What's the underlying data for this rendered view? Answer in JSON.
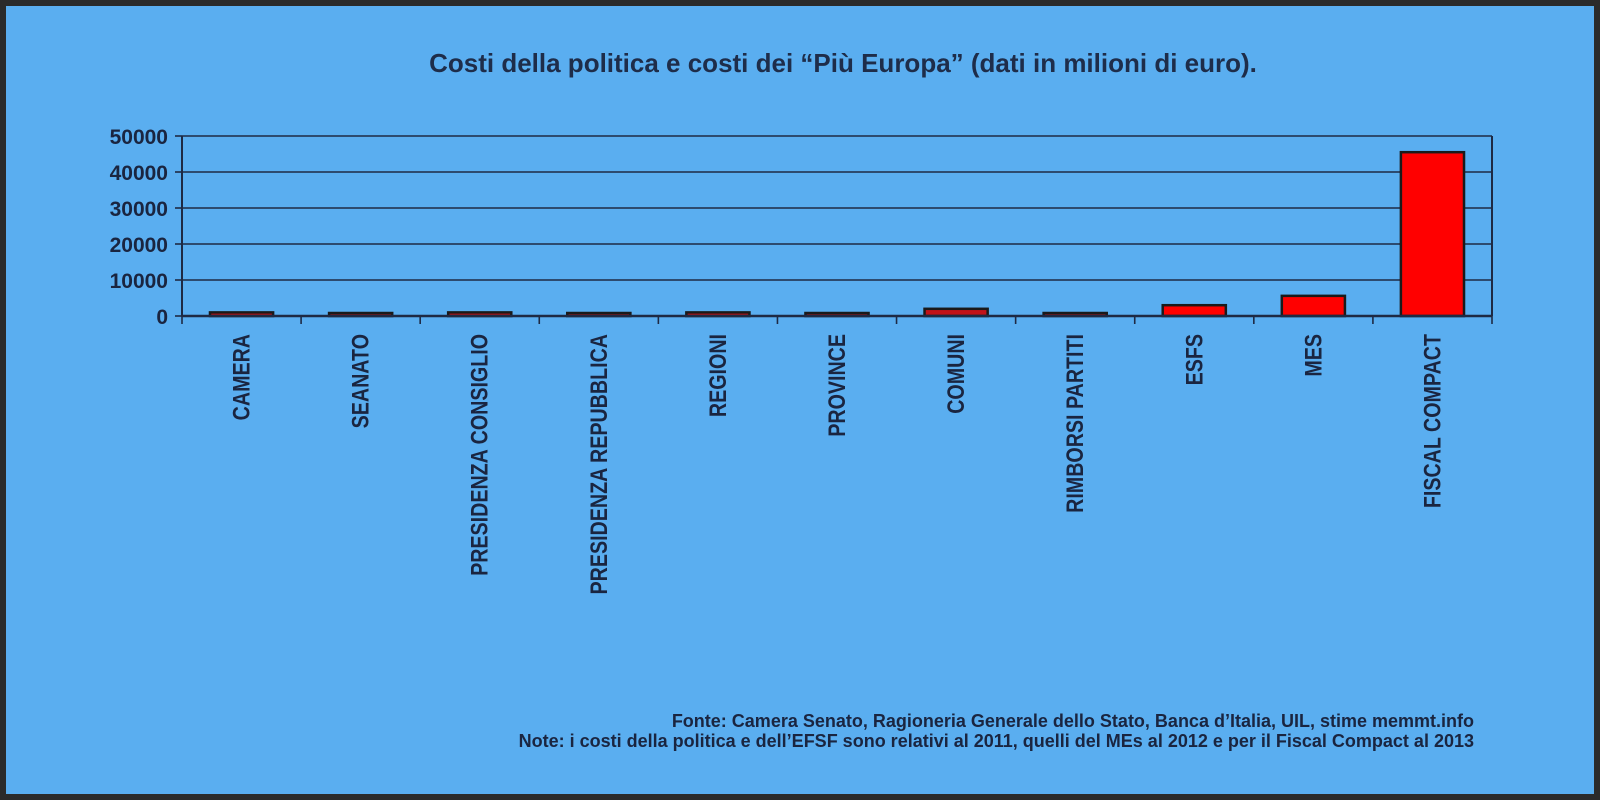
{
  "chart_data": {
    "type": "bar",
    "title": "Costi della politica e costi dei “Più Europa” (dati in milioni di euro).",
    "categories": [
      "CAMERA",
      "SEANATO",
      "PRESIDENZA CONSIGLIO",
      "PRESIDENZA REPUBBLICA",
      "REGIONI",
      "PROVINCE",
      "COMUNI",
      "RIMBORSI PARTITI",
      "ESFS",
      "MES",
      "FISCAL COMPACT"
    ],
    "values": [
      1000,
      500,
      1000,
      300,
      1000,
      500,
      2000,
      100,
      3000,
      5600,
      45500
    ],
    "bar_colors": [
      "#c1121a",
      "#c1121a",
      "#c1121a",
      "#c1121a",
      "#c1121a",
      "#c1121a",
      "#c1121a",
      "#c1121a",
      "#ff0000",
      "#ff0000",
      "#ff0000"
    ],
    "ylim": [
      0,
      50000
    ],
    "yticks": [
      0,
      10000,
      20000,
      30000,
      40000,
      50000
    ],
    "xlabel": "",
    "ylabel": "",
    "grid": true
  },
  "footer": {
    "source": "Fonte: Camera Senato, Ragioneria Generale dello Stato, Banca d’Italia, UIL, stime memmt.info",
    "note": "Note: i costi della politica e dell’EFSF sono relativi al 2011, quelli del MEs al 2012 e per il Fiscal Compact al 2013"
  },
  "colors": {
    "background": "#5aaef0",
    "frame": "#2b2b2b",
    "gridline": "#1e2a44",
    "bar_outline": "#1a1a1a"
  }
}
